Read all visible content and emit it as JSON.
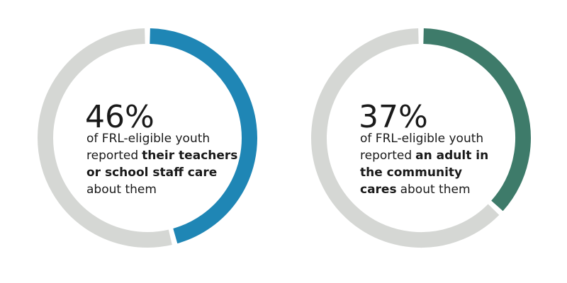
{
  "chart_data": [
    {
      "type": "donut",
      "values": [
        46
      ],
      "value_labels": [
        "46%"
      ],
      "color": "#1f86b5",
      "track_color": "#d5d7d4",
      "description": [
        [
          {
            "text": "of FRL-eligible youth",
            "bold": false
          }
        ],
        [
          {
            "text": "reported",
            "bold": false
          },
          {
            "text": "their teachers",
            "bold": true
          }
        ],
        [
          {
            "text": "or school staff care",
            "bold": true
          }
        ],
        [
          {
            "text": "about them",
            "bold": false
          }
        ]
      ]
    },
    {
      "type": "donut",
      "values": [
        37
      ],
      "value_labels": [
        "37%"
      ],
      "color": "#3e7b6a",
      "track_color": "#d5d7d4",
      "description": [
        [
          {
            "text": "of FRL-eligible youth",
            "bold": false
          }
        ],
        [
          {
            "text": "reported",
            "bold": false
          },
          {
            "text": "an adult in",
            "bold": true
          }
        ],
        [
          {
            "text": "the community",
            "bold": true
          }
        ],
        [
          {
            "text": "cares",
            "bold": true
          },
          {
            "text": "about them",
            "bold": false
          }
        ]
      ]
    }
  ]
}
